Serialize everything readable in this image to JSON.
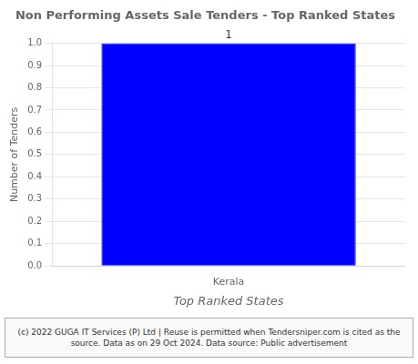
{
  "chart_data": {
    "type": "bar",
    "title": "Non Performing Assets Sale Tenders - Top Ranked States",
    "categories": [
      "Kerala"
    ],
    "values": [
      1
    ],
    "color": "#0000FF",
    "ylabel": "Number of Tenders",
    "xlabel": "Top Ranked States",
    "ylim": [
      0.0,
      1.0
    ],
    "yticks": [
      {
        "value": 0,
        "label": "0.0"
      },
      0.1,
      0.2,
      0.3,
      0.4,
      0.5,
      0.6,
      0.7,
      0.8,
      0.9,
      {
        "value": 1,
        "label": "1.0"
      }
    ],
    "grid": true,
    "data_labels": true,
    "annotations": [
      "(c) 2022 GUGA IT Services (P) Ltd | Reuse is permitted when Tendersniper.com is cited as the source. Data as on 29 Oct 2024. Data source: Public advertisement"
    ]
  }
}
